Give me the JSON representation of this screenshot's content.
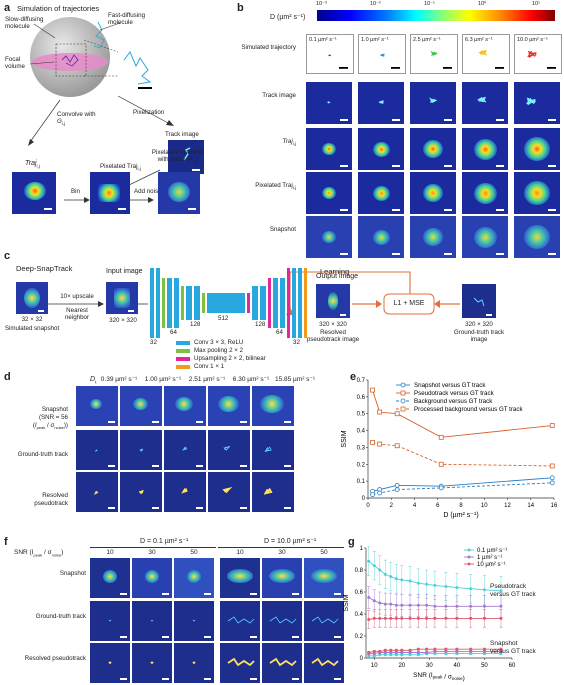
{
  "panel_labels": {
    "a": "a",
    "b": "b",
    "c": "c",
    "d": "d",
    "e": "e",
    "f": "f",
    "g": "g"
  },
  "panel_a": {
    "title": "Simulation of trajectories",
    "slow_label": "Slow-diffusing molecule",
    "fast_label": "Fast-diffusing molecule",
    "focal_label": "Focal volume",
    "pixelization": "Pixelization",
    "convolve": "Convolve with",
    "convolve_sym": "G",
    "convolve_sub": "i,j",
    "track_image": "Track image",
    "traj": "Traj",
    "traj_sub": "i,j",
    "bin": "Bin",
    "add_noise": "Add noise",
    "pixelated_traj": "Pixelated Traj",
    "pixelated_traj_sub": "i,j",
    "snapshot_title": "Pixelated snapshot with noise (X",
    "snapshot_sub": "i,j",
    "snapshot_end": ")"
  },
  "panel_b": {
    "colorbar_label": "D (µm² s⁻¹)",
    "colorbar_ticks": [
      "10⁻³",
      "10⁻²",
      "10⁻¹",
      "10⁰",
      "10¹"
    ],
    "row_labels": [
      "Simulated trajectory",
      "Track image",
      "Traj",
      "Pixelated Traj",
      "Snapshot"
    ],
    "row_subs": [
      "",
      "",
      "i,j",
      "i,j",
      ""
    ],
    "d_values": [
      "0.1 µm² s⁻¹",
      "1.0 µm² s⁻¹",
      "2.5 µm² s⁻¹",
      "6.3 µm² s⁻¹",
      "10.0 µm² s⁻¹"
    ],
    "traj_colors": [
      "#1b2fb5",
      "#1ea0e0",
      "#33c24a",
      "#f2c21a",
      "#e0342b"
    ]
  },
  "panel_c": {
    "title": "Deep-SnapTrack",
    "learning": "Learning",
    "input_image": "Input image",
    "upscale": "10× upscale",
    "nearest": "Nearest neighbor",
    "sim_snapshot": "Simulated snapshot",
    "size_small": "32 × 32",
    "size_big": "320 × 320",
    "output_image": "Output image",
    "resolved": "Resolved pseudotrack image",
    "loss": "L1 + MSE",
    "gt": "Ground-truth track image",
    "channels": [
      "32",
      "64",
      "128",
      "512",
      "128",
      "64",
      "32"
    ],
    "legend": [
      {
        "label": "Conv 3 × 3, ReLU",
        "color": "#29a8e0"
      },
      {
        "label": "Max pooling 2 × 2",
        "color": "#7cc242"
      },
      {
        "label": "Upsampling 2 × 2, bilinear",
        "color": "#e0289b"
      },
      {
        "label": "Conv 1 × 1",
        "color": "#f29a1a"
      }
    ]
  },
  "panel_d": {
    "d_label": "D",
    "d_sub": "t",
    "d_values": [
      "0.39 µm² s⁻¹",
      "1.00 µm² s⁻¹",
      "2.51 µm² s⁻¹",
      "6.30 µm² s⁻¹",
      "15.85 µm² s⁻¹"
    ],
    "row_labels": [
      "Snapshot (SNR = 56 (I / σ))",
      "Ground-truth track",
      "Resolved pseudotrack"
    ],
    "snapshot_l1": "Snapshot",
    "snapshot_l2": "(SNR = 56",
    "snapshot_l3": "(I",
    "snapshot_l3_sub1": "peak",
    "snapshot_l3_mid": " / σ",
    "snapshot_l3_sub2": "noise",
    "snapshot_l3_end": "))"
  },
  "chart_e": {
    "type": "line",
    "ylabel": "SSIM",
    "xlabel": "D (µm² s⁻¹)",
    "xlim": [
      0,
      16
    ],
    "ylim": [
      0,
      0.7
    ],
    "xticks": [
      0,
      2,
      4,
      6,
      8,
      10,
      12,
      14,
      16
    ],
    "yticks": [
      0,
      0.1,
      0.2,
      0.3,
      0.4,
      0.5,
      0.6,
      0.7
    ],
    "x": [
      0.39,
      1.0,
      2.51,
      6.3,
      15.85
    ],
    "series": [
      {
        "name": "Snapshot versus GT track",
        "color": "#2a7fc4",
        "dashed": false,
        "marker": "circle",
        "values": [
          0.04,
          0.05,
          0.075,
          0.07,
          0.12
        ]
      },
      {
        "name": "Pseudotrack versus GT track",
        "color": "#d9622b",
        "dashed": false,
        "marker": "square",
        "values": [
          0.64,
          0.51,
          0.5,
          0.36,
          0.43
        ]
      },
      {
        "name": "Background versus GT track",
        "color": "#2a7fc4",
        "dashed": true,
        "marker": "circle",
        "values": [
          0.02,
          0.03,
          0.05,
          0.06,
          0.09
        ]
      },
      {
        "name": "Processed background versus GT track",
        "color": "#d9622b",
        "dashed": true,
        "marker": "square",
        "values": [
          0.33,
          0.32,
          0.31,
          0.2,
          0.19
        ]
      }
    ]
  },
  "panel_f": {
    "snr_label": "SNR (I",
    "snr_sub1": "peak",
    "snr_mid": " / σ",
    "snr_sub2": "noise",
    "snr_end": ")",
    "group1": "D = 0.1 µm² s⁻¹",
    "group2": "D = 10.0 µm² s⁻¹",
    "snr_values": [
      "10",
      "30",
      "50",
      "10",
      "30",
      "50"
    ],
    "row_labels": [
      "Snapshot",
      "Ground-truth track",
      "Resolved pseudotrack"
    ]
  },
  "chart_g": {
    "type": "line",
    "ylabel": "SSIM",
    "xlabel": "SNR (I",
    "xlabel_sub1": "peak",
    "xlabel_mid": " / σ",
    "xlabel_sub2": "noise",
    "xlabel_end": ")",
    "xlim": [
      7,
      60
    ],
    "ylim": [
      0,
      1.0
    ],
    "xticks": [
      10,
      20,
      30,
      40,
      50,
      60
    ],
    "yticks": [
      0,
      0.2,
      0.4,
      0.6,
      0.8,
      1.0
    ],
    "x": [
      8,
      10,
      12,
      14,
      16,
      18,
      20,
      23,
      26,
      29,
      32,
      36,
      40,
      45,
      50,
      56
    ],
    "series": [
      {
        "name": "0.1 µm² s⁻¹",
        "color": "#4fd0d8",
        "values": [
          0.88,
          0.84,
          0.8,
          0.76,
          0.74,
          0.72,
          0.71,
          0.7,
          0.68,
          0.67,
          0.66,
          0.65,
          0.64,
          0.63,
          0.62,
          0.61
        ],
        "err": 0.13,
        "group": "pseudo"
      },
      {
        "name": "1 µm² s⁻¹",
        "color": "#a27ad0",
        "values": [
          0.55,
          0.52,
          0.5,
          0.49,
          0.49,
          0.48,
          0.48,
          0.48,
          0.48,
          0.48,
          0.47,
          0.47,
          0.47,
          0.47,
          0.47,
          0.47
        ],
        "err": 0.1,
        "group": "pseudo"
      },
      {
        "name": "10 µm² s⁻¹",
        "color": "#e0586e",
        "values": [
          0.35,
          0.36,
          0.36,
          0.36,
          0.36,
          0.36,
          0.36,
          0.36,
          0.36,
          0.36,
          0.36,
          0.36,
          0.36,
          0.36,
          0.36,
          0.36
        ],
        "err": 0.08,
        "group": "pseudo"
      },
      {
        "name": "0.1 snapshot",
        "color": "#4fd0d8",
        "values": [
          0.02,
          0.02,
          0.03,
          0.03,
          0.03,
          0.03,
          0.03,
          0.03,
          0.03,
          0.04,
          0.04,
          0.04,
          0.04,
          0.04,
          0.04,
          0.04
        ],
        "err": 0.01,
        "group": "snap"
      },
      {
        "name": "1 snapshot",
        "color": "#a27ad0",
        "values": [
          0.04,
          0.04,
          0.05,
          0.05,
          0.05,
          0.05,
          0.05,
          0.05,
          0.05,
          0.05,
          0.06,
          0.06,
          0.06,
          0.06,
          0.06,
          0.06
        ],
        "err": 0.01,
        "group": "snap"
      },
      {
        "name": "10 snapshot",
        "color": "#e0586e",
        "values": [
          0.05,
          0.06,
          0.06,
          0.07,
          0.07,
          0.07,
          0.07,
          0.07,
          0.08,
          0.08,
          0.08,
          0.08,
          0.08,
          0.08,
          0.08,
          0.08
        ],
        "err": 0.01,
        "group": "snap"
      }
    ],
    "legend": [
      "0.1 µm² s⁻¹",
      "1 µm² s⁻¹",
      "10 µm² s⁻¹"
    ],
    "pseudo_label_l1": "Pseudotrack",
    "pseudo_label_l2": "versus GT track",
    "snap_label_l1": "Snapshot",
    "snap_label_l2": "versus GT track"
  }
}
